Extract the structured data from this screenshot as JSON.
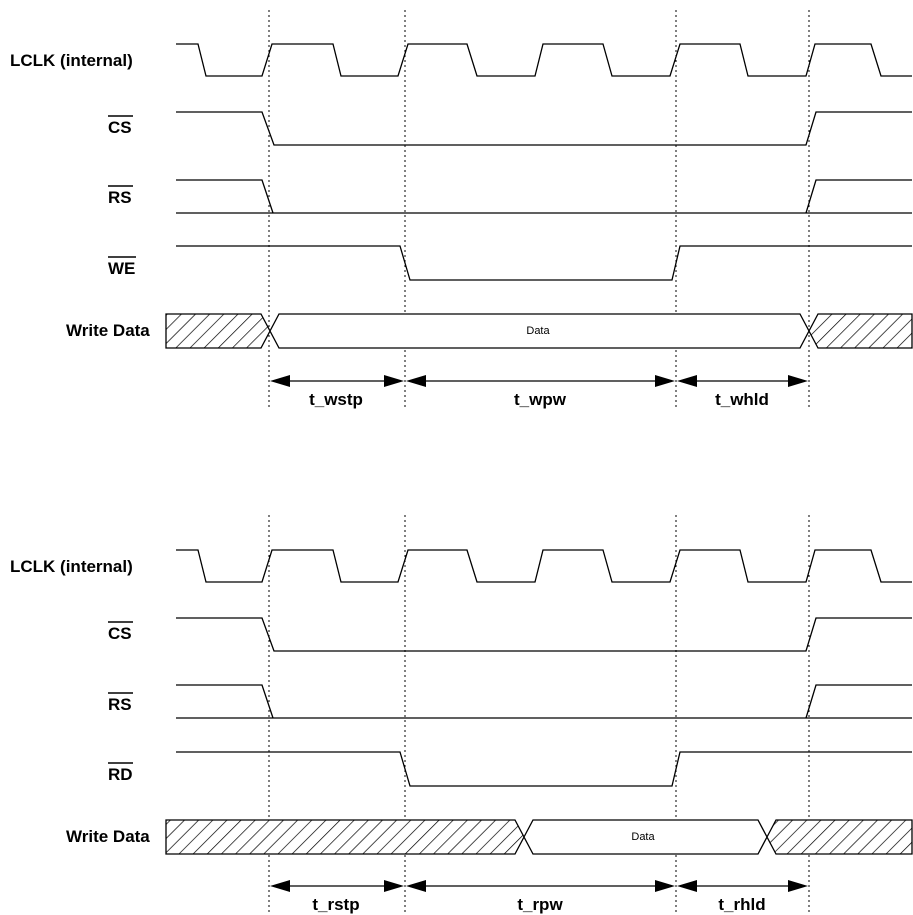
{
  "write_cycle": {
    "signals": {
      "lclk": "LCLK (internal)",
      "cs": "CS",
      "rs": "RS",
      "strobe": "WE",
      "data": "Write Data"
    },
    "data_label": "Data",
    "timing": {
      "setup": "t_wstp",
      "pulse_width": "t_wpw",
      "hold": "t_whld"
    }
  },
  "read_cycle": {
    "signals": {
      "lclk": "LCLK (internal)",
      "cs": "CS",
      "rs": "RS",
      "strobe": "RD",
      "data": "Write Data"
    },
    "data_label": "Data",
    "timing": {
      "setup": "t_rstp",
      "pulse_width": "t_rpw",
      "hold": "t_rhld"
    }
  }
}
